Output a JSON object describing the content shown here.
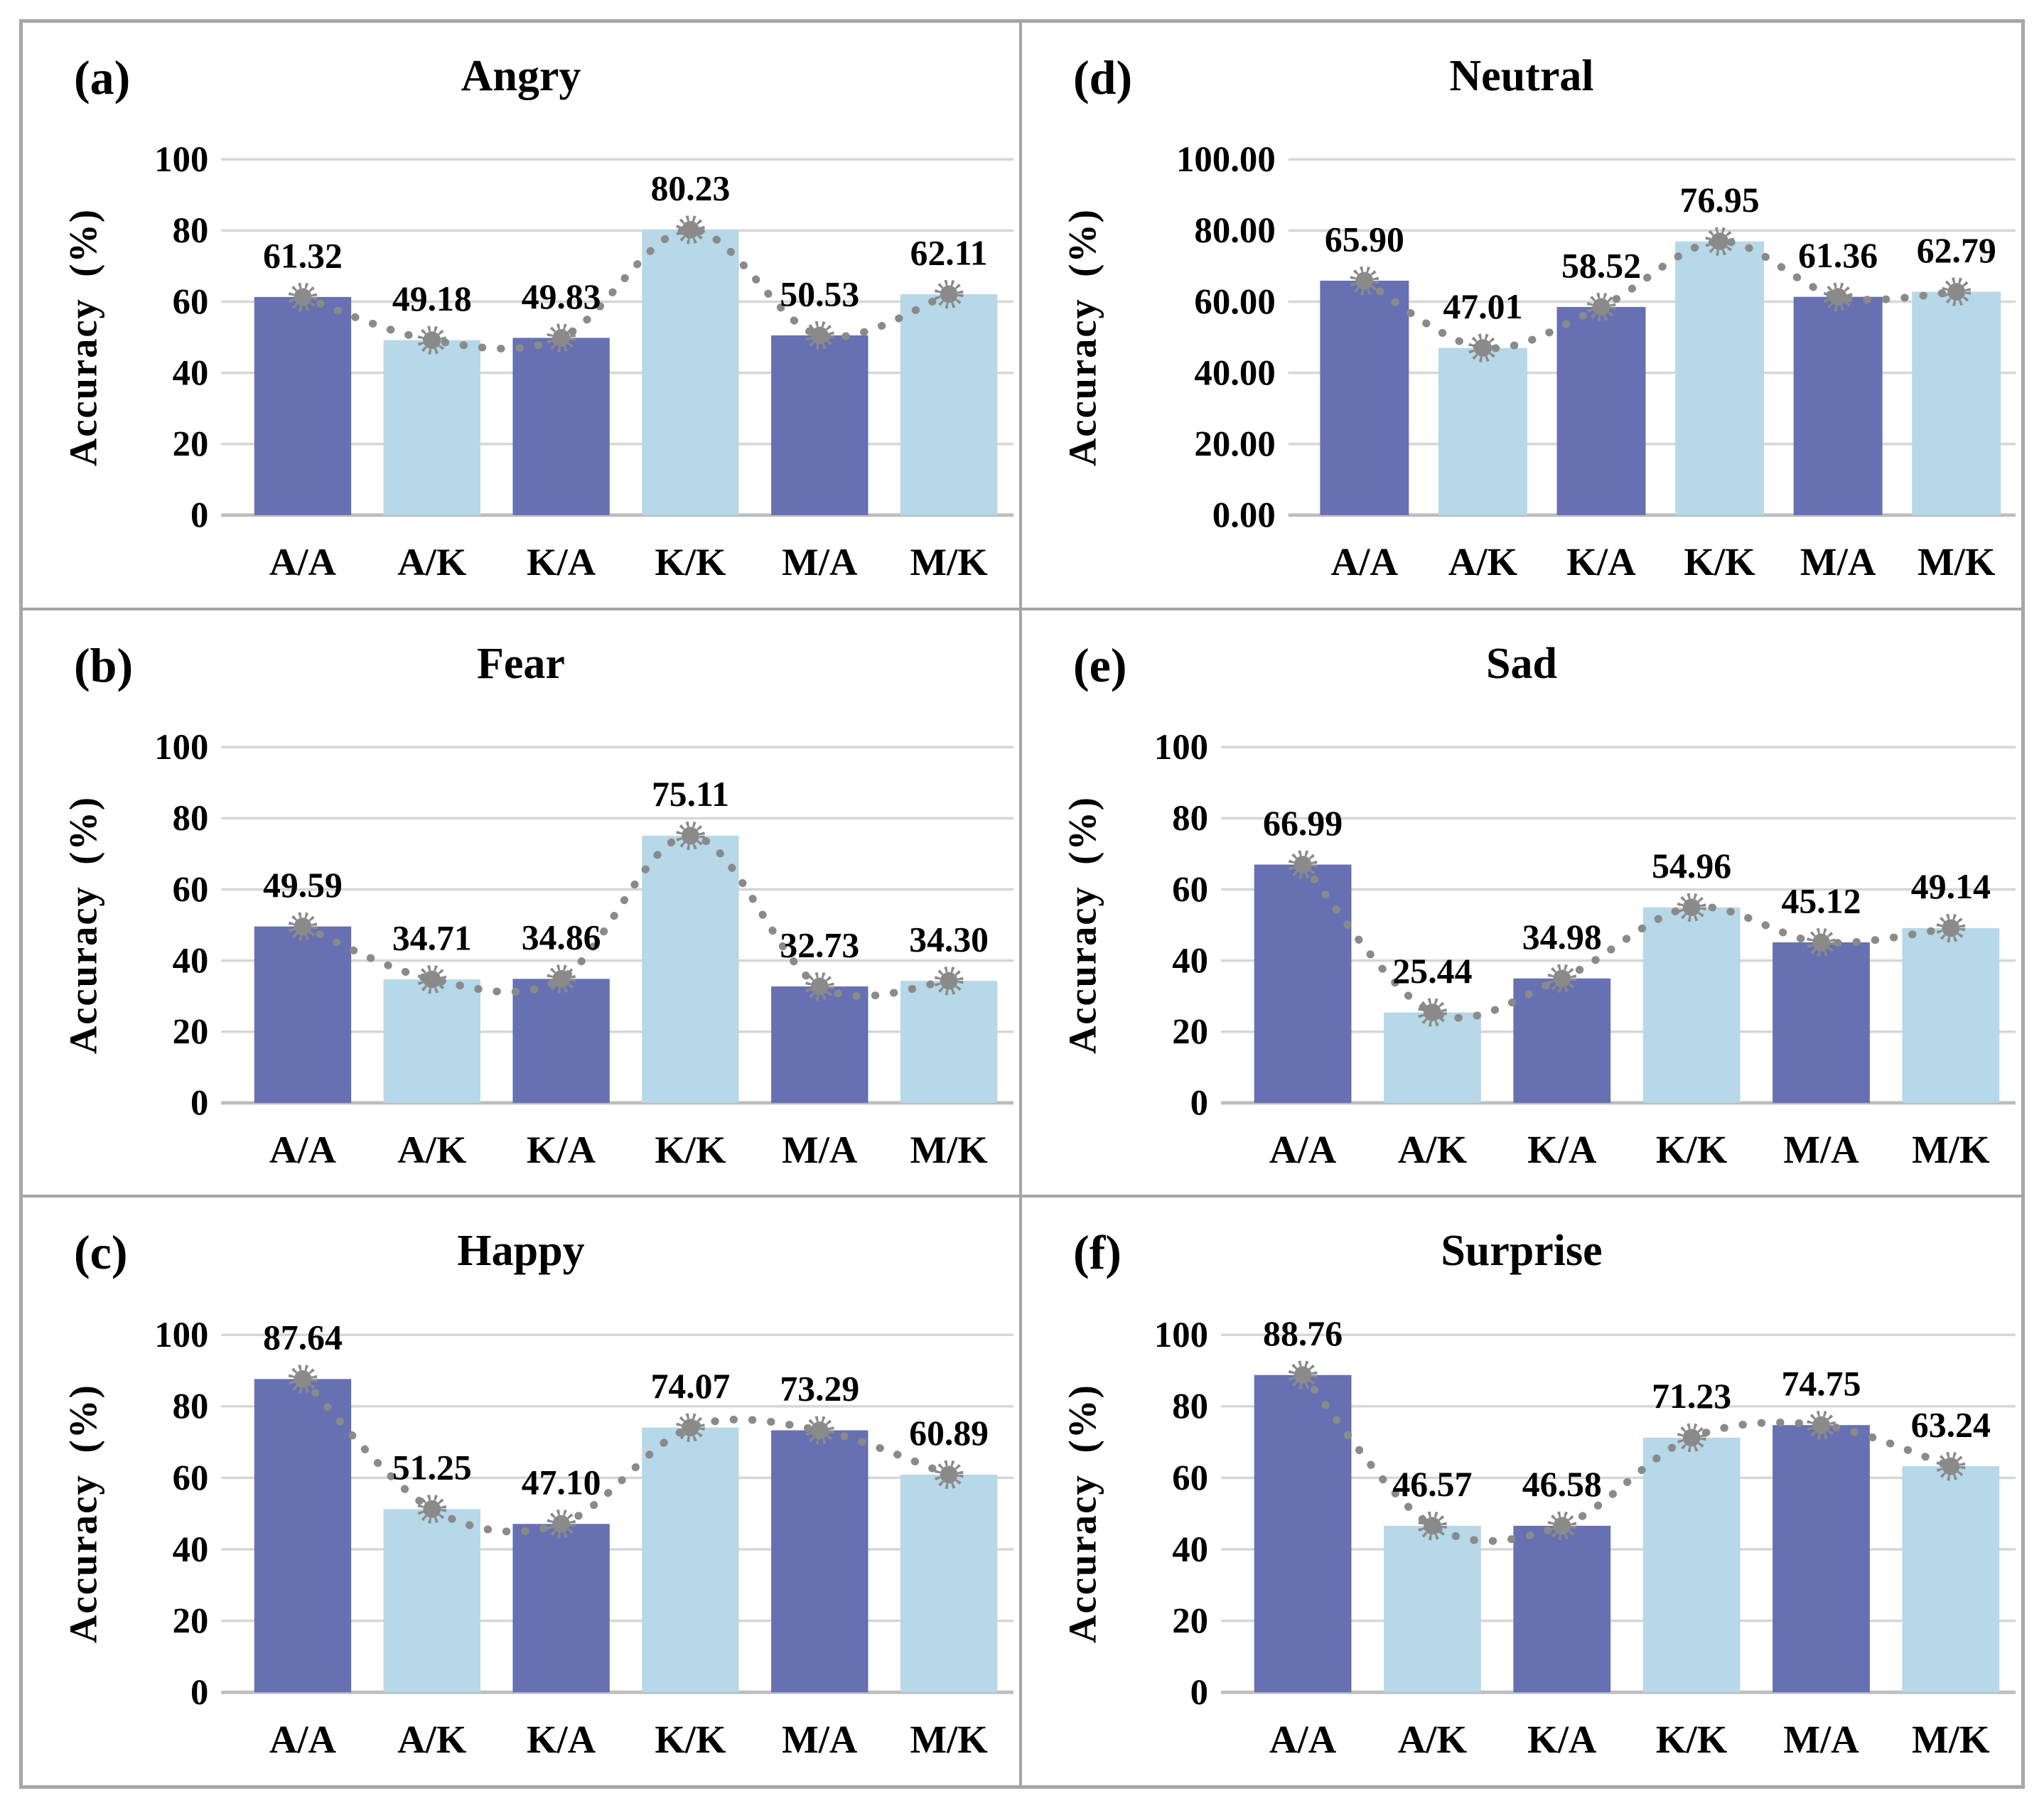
{
  "figure": {
    "ylabel": "Accuracy (%)",
    "categories": [
      "A/A",
      "A/K",
      "K/A",
      "K/K",
      "M/A",
      "M/K"
    ]
  },
  "style": {
    "bar_color_dark": "#6670B2",
    "bar_color_light": "#B6D8E8",
    "trendline_color": "#8A8A8A",
    "grid_color": "#D6D6D6",
    "axis_color": "#BDBDBD",
    "border_color": "#A6A6A6",
    "text_color": "#000000"
  },
  "chart_data": [
    {
      "type": "bar",
      "panel_label": "(a)",
      "title": "Angry",
      "categories": [
        "A/A",
        "A/K",
        "K/A",
        "K/K",
        "M/A",
        "M/K"
      ],
      "values": [
        61.32,
        49.18,
        49.83,
        80.23,
        50.53,
        62.11
      ],
      "labels": [
        "61.32",
        "49.18",
        "49.83",
        "80.23",
        "50.53",
        "62.11"
      ],
      "xlabel": "",
      "ylabel": "Accuracy (%)",
      "ylim": [
        0,
        100
      ],
      "ytick_step": 20,
      "ytick_decimals": 0,
      "yticks": [
        "0",
        "20",
        "40",
        "60",
        "80",
        "100"
      ],
      "grid": true,
      "legend": false,
      "trendline": true
    },
    {
      "type": "bar",
      "panel_label": "(b)",
      "title": "Fear",
      "categories": [
        "A/A",
        "A/K",
        "K/A",
        "K/K",
        "M/A",
        "M/K"
      ],
      "values": [
        49.59,
        34.71,
        34.86,
        75.11,
        32.73,
        34.3
      ],
      "labels": [
        "49.59",
        "34.71",
        "34.86",
        "75.11",
        "32.73",
        "34.30"
      ],
      "xlabel": "",
      "ylabel": "Accuracy (%)",
      "ylim": [
        0,
        100
      ],
      "ytick_step": 20,
      "ytick_decimals": 0,
      "yticks": [
        "0",
        "20",
        "40",
        "60",
        "80",
        "100"
      ],
      "grid": true,
      "legend": false,
      "trendline": true
    },
    {
      "type": "bar",
      "panel_label": "(c)",
      "title": "Happy",
      "categories": [
        "A/A",
        "A/K",
        "K/A",
        "K/K",
        "M/A",
        "M/K"
      ],
      "values": [
        87.64,
        51.25,
        47.1,
        74.07,
        73.29,
        60.89
      ],
      "labels": [
        "87.64",
        "51.25",
        "47.10",
        "74.07",
        "73.29",
        "60.89"
      ],
      "xlabel": "",
      "ylabel": "Accuracy (%)",
      "ylim": [
        0,
        100
      ],
      "ytick_step": 20,
      "ytick_decimals": 0,
      "yticks": [
        "0",
        "20",
        "40",
        "60",
        "80",
        "100"
      ],
      "grid": true,
      "legend": false,
      "trendline": true
    },
    {
      "type": "bar",
      "panel_label": "(d)",
      "title": "Neutral",
      "categories": [
        "A/A",
        "A/K",
        "K/A",
        "K/K",
        "M/A",
        "M/K"
      ],
      "values": [
        65.9,
        47.01,
        58.52,
        76.95,
        61.36,
        62.79
      ],
      "labels": [
        "65.90",
        "47.01",
        "58.52",
        "76.95",
        "61.36",
        "62.79"
      ],
      "xlabel": "",
      "ylabel": "Accuracy (%)",
      "ylim": [
        0,
        100
      ],
      "ytick_step": 20,
      "ytick_decimals": 2,
      "yticks": [
        "0.00",
        "20.00",
        "40.00",
        "60.00",
        "80.00",
        "100.00"
      ],
      "grid": true,
      "legend": false,
      "trendline": true
    },
    {
      "type": "bar",
      "panel_label": "(e)",
      "title": "Sad",
      "categories": [
        "A/A",
        "A/K",
        "K/A",
        "K/K",
        "M/A",
        "M/K"
      ],
      "values": [
        66.99,
        25.44,
        34.98,
        54.96,
        45.12,
        49.14
      ],
      "labels": [
        "66.99",
        "25.44",
        "34.98",
        "54.96",
        "45.12",
        "49.14"
      ],
      "xlabel": "",
      "ylabel": "Accuracy (%)",
      "ylim": [
        0,
        100
      ],
      "ytick_step": 20,
      "ytick_decimals": 0,
      "yticks": [
        "0",
        "20",
        "40",
        "60",
        "80",
        "100"
      ],
      "grid": true,
      "legend": false,
      "trendline": true
    },
    {
      "type": "bar",
      "panel_label": "(f)",
      "title": "Surprise",
      "categories": [
        "A/A",
        "A/K",
        "K/A",
        "K/K",
        "M/A",
        "M/K"
      ],
      "values": [
        88.76,
        46.57,
        46.58,
        71.23,
        74.75,
        63.24
      ],
      "labels": [
        "88.76",
        "46.57",
        "46.58",
        "71.23",
        "74.75",
        "63.24"
      ],
      "xlabel": "",
      "ylabel": "Accuracy (%)",
      "ylim": [
        0,
        100
      ],
      "ytick_step": 20,
      "ytick_decimals": 0,
      "yticks": [
        "0",
        "20",
        "40",
        "60",
        "80",
        "100"
      ],
      "grid": true,
      "legend": false,
      "trendline": true
    }
  ]
}
